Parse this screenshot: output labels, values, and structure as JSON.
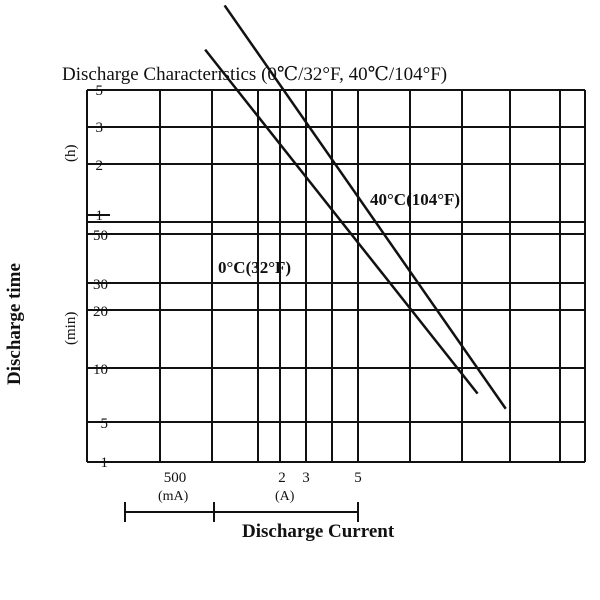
{
  "chart_data": {
    "type": "line",
    "title": "Discharge Characteristics (0℃/32°F, 40℃/104°F)",
    "ylabel": "Discharge time",
    "xlabel": "Discharge Current",
    "y_units": {
      "hours": "(h)",
      "minutes": "(min)"
    },
    "x_units": {
      "milliamps": "(mA)",
      "amps": "(A)"
    },
    "x_tick_labels": [
      "500",
      "2",
      "3",
      "5"
    ],
    "y_tick_labels_hours": [
      "5",
      "3",
      "2",
      "1"
    ],
    "y_tick_labels_minutes": [
      "50",
      "30",
      "20",
      "10",
      "5",
      "1"
    ],
    "grid": true,
    "series": [
      {
        "name": "0°C(32°F)",
        "x": [
          0.6,
          5.2
        ],
        "y": [
          3.0,
          0.32
        ],
        "x_unit": "A",
        "y_unit": "h"
      },
      {
        "name": "40°C(104°F)",
        "x": [
          0.7,
          6.5
        ],
        "y": [
          4.0,
          0.29
        ],
        "x_unit": "A",
        "y_unit": "h"
      }
    ]
  }
}
